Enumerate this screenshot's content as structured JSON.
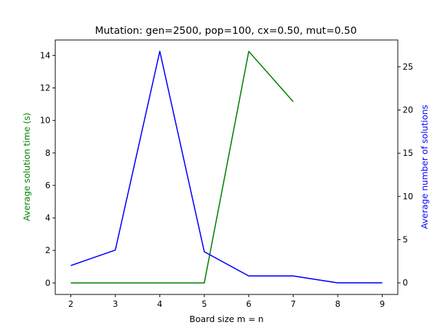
{
  "chart_data": {
    "type": "line",
    "title": "Mutation: gen=2500, pop=100, cx=0.50, mut=0.50",
    "xlabel": "Board size m = n",
    "ylabel_left": "Average solution time (s)",
    "ylabel_right": "Average number of solutions",
    "x_ticks": [
      2,
      3,
      4,
      5,
      6,
      7,
      8,
      9
    ],
    "y_left_ticks": [
      0,
      2,
      4,
      6,
      8,
      10,
      12,
      14
    ],
    "y_right_ticks": [
      0,
      5,
      10,
      15,
      20,
      25
    ],
    "xlim": [
      1.65,
      9.35
    ],
    "ylim_left": [
      -0.71,
      14.95
    ],
    "ylim_right": [
      -1.34,
      28.1
    ],
    "colors": {
      "left": "#008000",
      "right": "#0000ff"
    },
    "series": [
      {
        "axis": "left",
        "color": "#008000",
        "x": [
          2,
          3,
          4,
          5,
          6,
          7
        ],
        "values": [
          0,
          0,
          0,
          0,
          14.25,
          11.15
        ]
      },
      {
        "axis": "right",
        "color": "#0000ff",
        "x": [
          2,
          3,
          4,
          5,
          6,
          7,
          8,
          9
        ],
        "values": [
          2.0,
          3.8,
          26.8,
          3.6,
          0.8,
          0.8,
          0.0,
          0.0
        ]
      }
    ]
  }
}
